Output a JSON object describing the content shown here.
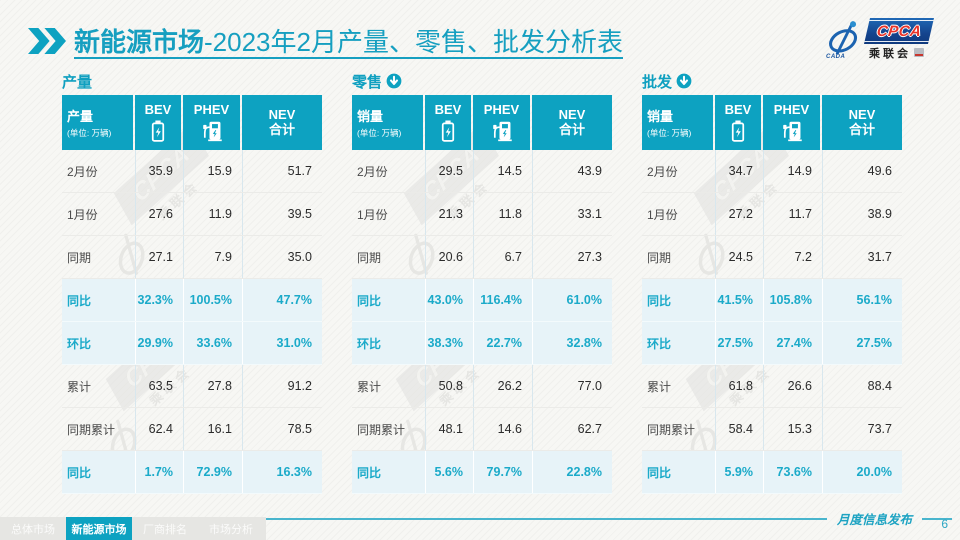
{
  "header": {
    "title_strong": "新能源市场",
    "title_rest": "-2023年2月产量、零售、批发分析表",
    "logo": {
      "cpca": "CPCA",
      "cn_name": "乘联会",
      "swoosh_sub": "CADA"
    }
  },
  "unit_note": "(单位: 万辆)",
  "columns": [
    "BEV",
    "PHEV",
    "NEV\n合计"
  ],
  "watermark_text": {
    "block": "CPCA",
    "cn": "乘联会"
  },
  "tables": [
    {
      "section_title": "产量",
      "arrow": false,
      "row_header_label": "产量",
      "rows": [
        {
          "label": "2月份",
          "values": [
            "35.9",
            "15.9",
            "51.7"
          ],
          "highlight": false
        },
        {
          "label": "1月份",
          "values": [
            "27.6",
            "11.9",
            "39.5"
          ],
          "highlight": false
        },
        {
          "label": "同期",
          "values": [
            "27.1",
            "7.9",
            "35.0"
          ],
          "highlight": false
        },
        {
          "label": "同比",
          "values": [
            "32.3%",
            "100.5%",
            "47.7%"
          ],
          "highlight": true
        },
        {
          "label": "环比",
          "values": [
            "29.9%",
            "33.6%",
            "31.0%"
          ],
          "highlight": true
        },
        {
          "label": "累计",
          "values": [
            "63.5",
            "27.8",
            "91.2"
          ],
          "highlight": false
        },
        {
          "label": "同期累计",
          "values": [
            "62.4",
            "16.1",
            "78.5"
          ],
          "highlight": false
        },
        {
          "label": "同比",
          "values": [
            "1.7%",
            "72.9%",
            "16.3%"
          ],
          "highlight": true
        }
      ]
    },
    {
      "section_title": "零售",
      "arrow": true,
      "row_header_label": "销量",
      "rows": [
        {
          "label": "2月份",
          "values": [
            "29.5",
            "14.5",
            "43.9"
          ],
          "highlight": false
        },
        {
          "label": "1月份",
          "values": [
            "21.3",
            "11.8",
            "33.1"
          ],
          "highlight": false
        },
        {
          "label": "同期",
          "values": [
            "20.6",
            "6.7",
            "27.3"
          ],
          "highlight": false
        },
        {
          "label": "同比",
          "values": [
            "43.0%",
            "116.4%",
            "61.0%"
          ],
          "highlight": true
        },
        {
          "label": "环比",
          "values": [
            "38.3%",
            "22.7%",
            "32.8%"
          ],
          "highlight": true
        },
        {
          "label": "累计",
          "values": [
            "50.8",
            "26.2",
            "77.0"
          ],
          "highlight": false
        },
        {
          "label": "同期累计",
          "values": [
            "48.1",
            "14.6",
            "62.7"
          ],
          "highlight": false
        },
        {
          "label": "同比",
          "values": [
            "5.6%",
            "79.7%",
            "22.8%"
          ],
          "highlight": true
        }
      ]
    },
    {
      "section_title": "批发",
      "arrow": true,
      "row_header_label": "销量",
      "rows": [
        {
          "label": "2月份",
          "values": [
            "34.7",
            "14.9",
            "49.6"
          ],
          "highlight": false
        },
        {
          "label": "1月份",
          "values": [
            "27.2",
            "11.7",
            "38.9"
          ],
          "highlight": false
        },
        {
          "label": "同期",
          "values": [
            "24.5",
            "7.2",
            "31.7"
          ],
          "highlight": false
        },
        {
          "label": "同比",
          "values": [
            "41.5%",
            "105.8%",
            "56.1%"
          ],
          "highlight": true
        },
        {
          "label": "环比",
          "values": [
            "27.5%",
            "27.4%",
            "27.5%"
          ],
          "highlight": true
        },
        {
          "label": "累计",
          "values": [
            "61.8",
            "26.6",
            "88.4"
          ],
          "highlight": false
        },
        {
          "label": "同期累计",
          "values": [
            "58.4",
            "15.3",
            "73.7"
          ],
          "highlight": false
        },
        {
          "label": "同比",
          "values": [
            "5.9%",
            "73.6%",
            "20.0%"
          ],
          "highlight": true
        }
      ]
    }
  ],
  "footer": {
    "tabs": [
      {
        "label": "总体市场",
        "active": false
      },
      {
        "label": "新能源市场",
        "active": true
      },
      {
        "label": "厂商排名",
        "active": false
      },
      {
        "label": "市场分析",
        "active": false
      }
    ],
    "note": "月度信息发布",
    "page_number": "6"
  },
  "colors": {
    "teal": "#0da2c1",
    "title_teal": "#169fc0",
    "highlight_bg": "#e7f3f8",
    "highlight_text": "#1baac9",
    "cpca_red": "#e8342a",
    "logo_blue": "#16529e"
  }
}
